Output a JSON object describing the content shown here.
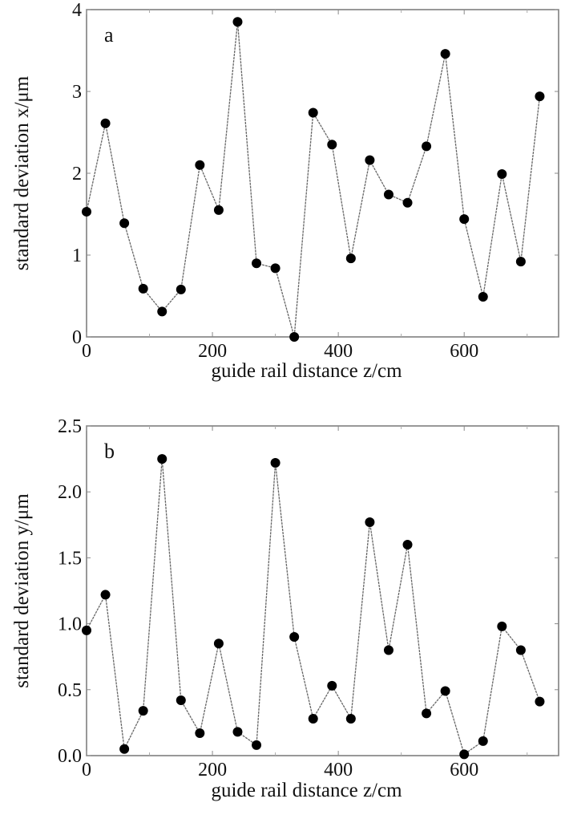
{
  "chart_data": [
    {
      "type": "line",
      "panel_label": "a",
      "xlabel": "guide rail distance z/cm",
      "ylabel": "standard deviation x/μm",
      "xlim": [
        0,
        750
      ],
      "ylim": [
        0,
        4
      ],
      "xticks": [
        "0",
        "200",
        "400",
        "600"
      ],
      "xtick_values": [
        0,
        200,
        400,
        600
      ],
      "yticks": [
        "0",
        "1",
        "2",
        "3",
        "4"
      ],
      "ytick_values": [
        0,
        1,
        2,
        3,
        4
      ],
      "grid": false,
      "marker": "filled-circle",
      "x": [
        0,
        30,
        60,
        90,
        120,
        150,
        180,
        210,
        240,
        270,
        300,
        330,
        360,
        390,
        420,
        450,
        480,
        510,
        540,
        570,
        600,
        630,
        660,
        690,
        720
      ],
      "y": [
        1.53,
        2.61,
        1.39,
        0.59,
        0.31,
        0.58,
        2.1,
        1.55,
        3.85,
        0.9,
        0.84,
        0.0,
        2.74,
        2.35,
        0.96,
        2.16,
        1.74,
        1.64,
        2.33,
        3.46,
        1.44,
        0.49,
        1.99,
        0.92,
        2.94
      ]
    },
    {
      "type": "line",
      "panel_label": "b",
      "xlabel": "guide rail distance z/cm",
      "ylabel": "standard deviation y/μm",
      "xlim": [
        0,
        750
      ],
      "ylim": [
        0,
        2.5
      ],
      "xticks": [
        "0",
        "200",
        "400",
        "600"
      ],
      "xtick_values": [
        0,
        200,
        400,
        600
      ],
      "yticks": [
        "0.0",
        "0.5",
        "1.0",
        "1.5",
        "2.0",
        "2.5"
      ],
      "ytick_values": [
        0,
        0.5,
        1.0,
        1.5,
        2.0,
        2.5
      ],
      "grid": false,
      "marker": "filled-circle",
      "x": [
        0,
        30,
        60,
        90,
        120,
        150,
        180,
        210,
        240,
        270,
        300,
        330,
        360,
        390,
        420,
        450,
        480,
        510,
        540,
        570,
        600,
        630,
        660,
        690,
        720
      ],
      "y": [
        0.95,
        1.22,
        0.05,
        0.34,
        2.25,
        0.42,
        0.17,
        0.85,
        0.18,
        0.08,
        2.22,
        0.9,
        0.28,
        0.53,
        0.28,
        1.77,
        0.8,
        1.6,
        0.32,
        0.49,
        0.01,
        0.11,
        0.98,
        0.8,
        0.41
      ]
    }
  ]
}
